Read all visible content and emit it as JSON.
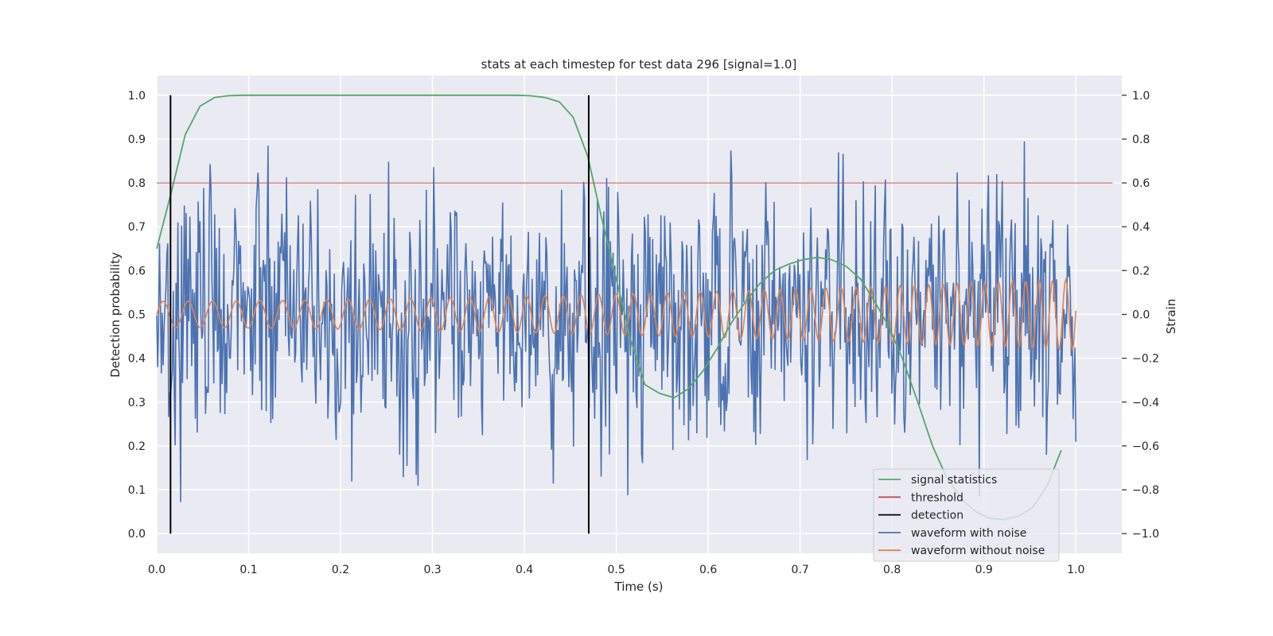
{
  "chart_data": {
    "type": "line",
    "title": "stats at each timestep for test data 296 [signal=1.0]",
    "xlabel": "Time (s)",
    "ylabel_left": "Detection probability",
    "ylabel_right": "Strain",
    "xlim": [
      0.0,
      1.05
    ],
    "ylim_left": [
      -0.045,
      1.045
    ],
    "ylim_right": [
      -1.09,
      1.09
    ],
    "x_ticks": [
      0.0,
      0.1,
      0.2,
      0.3,
      0.4,
      0.5,
      0.6,
      0.7,
      0.8,
      0.9,
      1.0
    ],
    "x_tick_labels": [
      "0.0",
      "0.1",
      "0.2",
      "0.3",
      "0.4",
      "0.5",
      "0.6",
      "0.7",
      "0.8",
      "0.9",
      "1.0"
    ],
    "y_left_ticks": [
      0.0,
      0.1,
      0.2,
      0.3,
      0.4,
      0.5,
      0.6,
      0.7,
      0.8,
      0.9,
      1.0
    ],
    "y_left_tick_labels": [
      "0.0",
      "0.1",
      "0.2",
      "0.3",
      "0.4",
      "0.5",
      "0.6",
      "0.7",
      "0.8",
      "0.9",
      "1.0"
    ],
    "y_right_ticks": [
      -1.0,
      -0.8,
      -0.6,
      -0.4,
      -0.2,
      0.0,
      0.2,
      0.4,
      0.6,
      0.8,
      1.0
    ],
    "y_right_tick_labels": [
      "−1.0",
      "−0.8",
      "−0.6",
      "−0.4",
      "−0.2",
      "0.0",
      "0.2",
      "0.4",
      "0.6",
      "0.8",
      "1.0"
    ],
    "grid": true,
    "legend_position": "lower-right",
    "threshold": {
      "name": "threshold",
      "y": 0.8,
      "x_range": [
        0.0,
        1.04
      ],
      "color": "#c44e52"
    },
    "detections": {
      "name": "detection",
      "x": [
        0.015,
        0.47
      ],
      "y_range": [
        0.0,
        1.0
      ],
      "color": "#000000"
    },
    "signal_statistics": {
      "name": "signal statistics",
      "axis": "left",
      "color": "#55a868",
      "x": [
        0.0,
        0.016,
        0.031,
        0.047,
        0.063,
        0.078,
        0.094,
        0.109,
        0.125,
        0.2,
        0.3,
        0.375,
        0.391,
        0.406,
        0.422,
        0.438,
        0.453,
        0.469,
        0.484,
        0.5,
        0.516,
        0.531,
        0.547,
        0.563,
        0.578,
        0.594,
        0.609,
        0.625,
        0.641,
        0.656,
        0.672,
        0.688,
        0.703,
        0.719,
        0.734,
        0.75,
        0.766,
        0.781,
        0.797,
        0.813,
        0.828,
        0.844,
        0.859,
        0.875,
        0.891,
        0.906,
        0.922,
        0.938,
        0.953,
        0.969,
        0.984
      ],
      "y": [
        0.65,
        0.78,
        0.91,
        0.975,
        0.995,
        0.999,
        1.0,
        1.0,
        1.0,
        1.0,
        1.0,
        1.0,
        1.0,
        0.999,
        0.995,
        0.985,
        0.95,
        0.86,
        0.72,
        0.58,
        0.44,
        0.34,
        0.32,
        0.31,
        0.33,
        0.37,
        0.42,
        0.48,
        0.53,
        0.57,
        0.6,
        0.615,
        0.625,
        0.63,
        0.625,
        0.61,
        0.58,
        0.53,
        0.47,
        0.39,
        0.3,
        0.2,
        0.13,
        0.08,
        0.05,
        0.035,
        0.032,
        0.04,
        0.06,
        0.11,
        0.19
      ]
    },
    "waveform_without_noise": {
      "name": "waveform without noise",
      "axis": "right",
      "color": "#dd8452",
      "x_start": 0.0,
      "x_end": 1.0,
      "points": 1000,
      "amplitude_start": 0.06,
      "amplitude_end": 0.16,
      "freq_start_hz": 36,
      "freq_end_hz": 70
    },
    "waveform_with_noise": {
      "name": "waveform with noise",
      "axis": "right",
      "color": "#4c72b0",
      "x_start": 0.0,
      "x_end": 1.0,
      "points": 1000,
      "noise_std": 0.27,
      "y_min": -1.0,
      "y_max": 1.0
    },
    "legend": [
      {
        "name": "signal statistics",
        "color": "#55a868"
      },
      {
        "name": "threshold",
        "color": "#c44e52"
      },
      {
        "name": "detection",
        "color": "#000000"
      },
      {
        "name": "waveform with noise",
        "color": "#4c72b0"
      },
      {
        "name": "waveform without noise",
        "color": "#dd8452"
      }
    ],
    "plot_background": "#eaeaf2",
    "grid_color": "#ffffff"
  }
}
